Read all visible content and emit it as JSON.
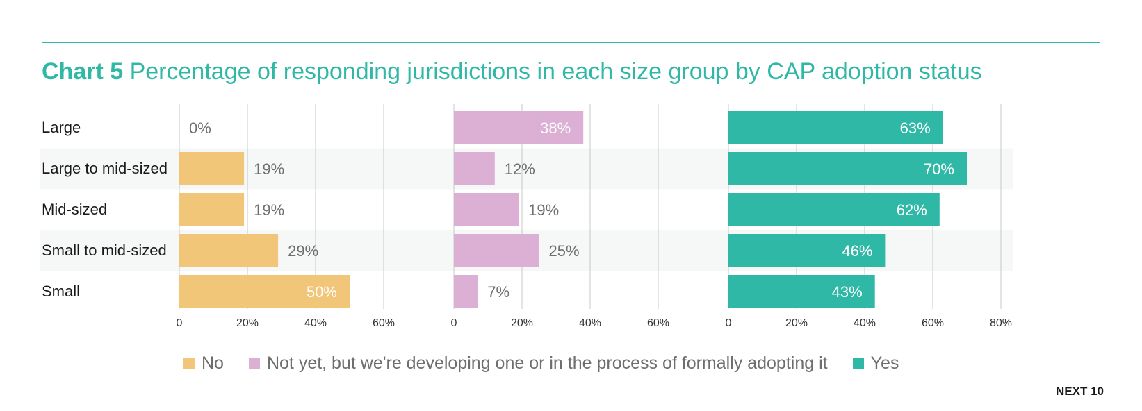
{
  "title": {
    "lead": "Chart 5",
    "text": "Percentage of responding jurisdictions in each size group by CAP adoption status"
  },
  "brand": "NEXT 10",
  "chart_data": {
    "type": "bar",
    "orientation": "horizontal",
    "layout": "small-multiples",
    "categories": [
      "Large",
      "Large to mid-sized",
      "Mid-sized",
      "Small to mid-sized",
      "Small"
    ],
    "series": [
      {
        "name": "No",
        "color": "#f2c679",
        "values": [
          0,
          19,
          19,
          29,
          50
        ],
        "labels": [
          "0%",
          "19%",
          "19%",
          "29%",
          "50%"
        ],
        "ticks": [
          "0",
          "20%",
          "40%",
          "60%"
        ],
        "xlim": [
          0,
          80
        ]
      },
      {
        "name": "Not yet, but we're developing one or in the process of formally adopting it",
        "color": "#dcafd4",
        "values": [
          38,
          12,
          19,
          25,
          7
        ],
        "labels": [
          "38%",
          "12%",
          "19%",
          "25%",
          "7%"
        ],
        "ticks": [
          "0",
          "20%",
          "40%",
          "60%"
        ],
        "xlim": [
          0,
          80
        ]
      },
      {
        "name": "Yes",
        "color": "#2fb8a6",
        "values": [
          63,
          70,
          62,
          46,
          43
        ],
        "labels": [
          "63%",
          "70%",
          "62%",
          "46%",
          "43%"
        ],
        "ticks": [
          "0",
          "20%",
          "40%",
          "60%",
          "80%"
        ],
        "xlim": [
          0,
          80
        ]
      }
    ],
    "grid": true,
    "legend_position": "bottom",
    "row_band_color": "#f5f8f7",
    "inside_label_color": "#ffffff",
    "outside_label_color": "#6e6e6e"
  }
}
